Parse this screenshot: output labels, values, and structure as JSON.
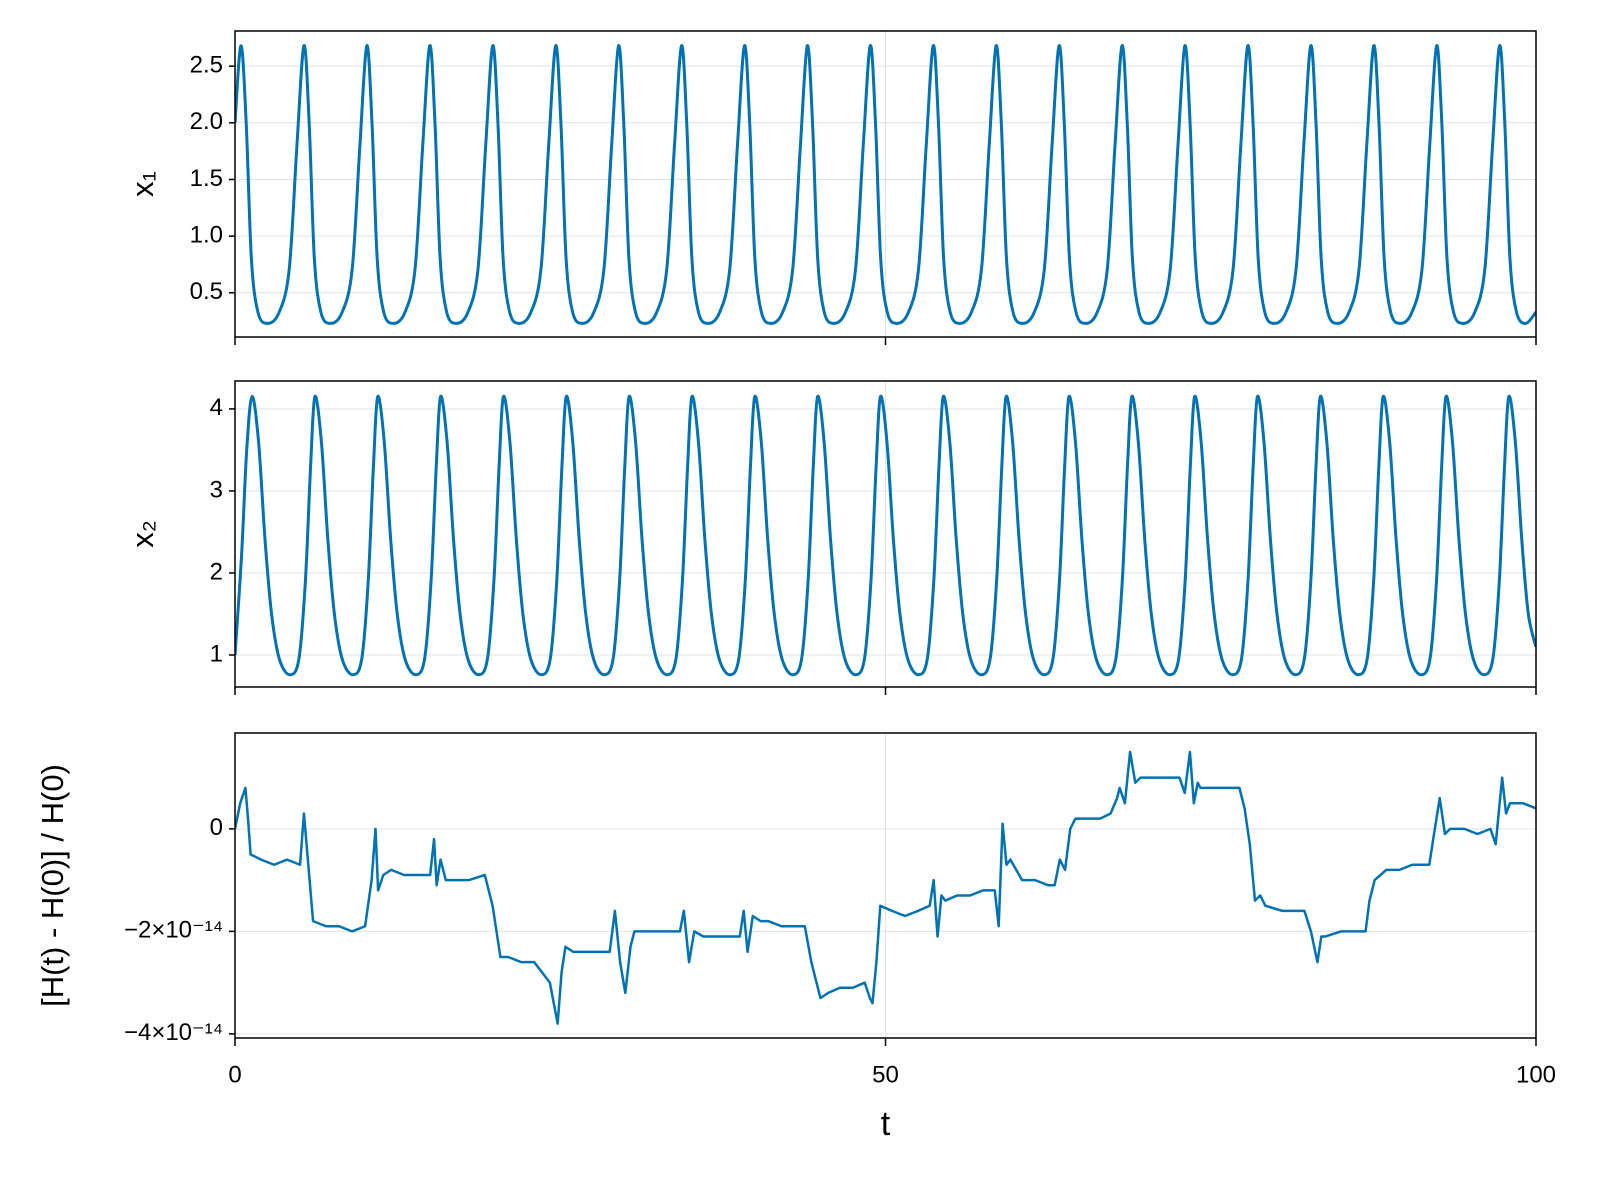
{
  "chart_data": [
    {
      "type": "line",
      "ylabel": "x₁",
      "xlim": [
        0,
        100
      ],
      "xticks": [
        0,
        50,
        100
      ],
      "ylim": [
        0.11,
        2.81
      ],
      "yticks": [
        0.5,
        {
          "value": 1,
          "label": "1.0"
        },
        1.5,
        {
          "value": 2,
          "label": "2.0"
        },
        2.5
      ],
      "grid": true,
      "color": "#0072b2",
      "x": [
        0,
        0.46,
        0.86,
        1.26,
        1.76,
        2.46,
        3.36,
        4.16,
        4.76,
        5.3,
        5.7,
        6.1,
        6.6,
        7.3,
        8.2,
        9.0,
        9.6,
        10.13,
        10.53,
        10.93,
        11.43,
        12.13,
        13.03,
        13.83,
        14.43,
        14.97,
        15.37,
        15.77,
        16.27,
        16.97,
        17.87,
        18.67,
        19.27,
        19.81,
        20.21,
        20.61,
        21.11,
        21.81,
        22.71,
        23.51,
        24.11,
        24.65,
        25.05,
        25.45,
        25.95,
        26.65,
        27.55,
        28.35,
        28.95,
        29.48,
        29.88,
        30.28,
        30.78,
        31.48,
        32.38,
        33.18,
        33.78,
        34.32,
        34.72,
        35.12,
        35.62,
        36.32,
        37.22,
        38.02,
        38.62,
        39.16,
        39.56,
        39.96,
        40.46,
        41.16,
        42.06,
        42.86,
        43.46,
        43.99,
        44.39,
        44.79,
        45.29,
        45.99,
        46.89,
        47.69,
        48.29,
        48.83,
        49.23,
        49.63,
        50.13,
        50.83,
        51.73,
        52.53,
        53.13,
        53.67,
        54.07,
        54.47,
        54.97,
        55.67,
        56.57,
        57.37,
        57.97,
        58.5,
        58.9,
        59.3,
        59.8,
        60.5,
        61.4,
        62.2,
        62.8,
        63.34,
        63.74,
        64.14,
        64.64,
        65.34,
        66.24,
        67.04,
        67.64,
        68.18,
        68.58,
        68.98,
        69.48,
        70.18,
        71.08,
        71.88,
        72.48,
        73.01,
        73.41,
        73.81,
        74.31,
        75.01,
        75.91,
        76.71,
        77.31,
        77.85,
        78.25,
        78.65,
        79.15,
        79.85,
        80.75,
        81.55,
        82.15,
        82.69,
        83.09,
        83.49,
        83.99,
        84.69,
        85.59,
        86.39,
        86.99,
        87.53,
        87.93,
        88.33,
        88.83,
        89.53,
        90.43,
        91.23,
        91.83,
        92.36,
        92.76,
        93.16,
        93.66,
        94.36,
        95.26,
        96.06,
        96.66,
        97.2,
        97.6,
        98.0,
        98.5,
        99.2,
        100
      ],
      "values": [
        2.0,
        2.68,
        2.0,
        0.8,
        0.33,
        0.23,
        0.32,
        0.7,
        1.8,
        2.68,
        2.0,
        0.8,
        0.33,
        0.23,
        0.32,
        0.7,
        1.8,
        2.68,
        2.0,
        0.8,
        0.33,
        0.23,
        0.32,
        0.7,
        1.8,
        2.68,
        2.0,
        0.8,
        0.33,
        0.23,
        0.32,
        0.7,
        1.8,
        2.68,
        2.0,
        0.8,
        0.33,
        0.23,
        0.32,
        0.7,
        1.8,
        2.68,
        2.0,
        0.8,
        0.33,
        0.23,
        0.32,
        0.7,
        1.8,
        2.68,
        2.0,
        0.8,
        0.33,
        0.23,
        0.32,
        0.7,
        1.8,
        2.68,
        2.0,
        0.8,
        0.33,
        0.23,
        0.32,
        0.7,
        1.8,
        2.68,
        2.0,
        0.8,
        0.33,
        0.23,
        0.32,
        0.7,
        1.8,
        2.68,
        2.0,
        0.8,
        0.33,
        0.23,
        0.32,
        0.7,
        1.8,
        2.68,
        2.0,
        0.8,
        0.33,
        0.23,
        0.32,
        0.7,
        1.8,
        2.68,
        2.0,
        0.8,
        0.33,
        0.23,
        0.32,
        0.7,
        1.8,
        2.68,
        2.0,
        0.8,
        0.33,
        0.23,
        0.32,
        0.7,
        1.8,
        2.68,
        2.0,
        0.8,
        0.33,
        0.23,
        0.32,
        0.7,
        1.8,
        2.68,
        2.0,
        0.8,
        0.33,
        0.23,
        0.32,
        0.7,
        1.8,
        2.68,
        2.0,
        0.8,
        0.33,
        0.23,
        0.32,
        0.7,
        1.8,
        2.68,
        2.0,
        0.8,
        0.33,
        0.23,
        0.32,
        0.7,
        1.8,
        2.68,
        2.0,
        0.8,
        0.33,
        0.23,
        0.32,
        0.7,
        1.8,
        2.68,
        2.0,
        0.8,
        0.33,
        0.23,
        0.32,
        0.7,
        1.8,
        2.68,
        2.0,
        0.8,
        0.33,
        0.23,
        0.32,
        0.7,
        1.8,
        2.68,
        2.0,
        0.8,
        0.33,
        0.23,
        0.33
      ]
    },
    {
      "type": "line",
      "ylabel": "x₂",
      "xlim": [
        0,
        100
      ],
      "xticks": [
        0,
        50,
        100
      ],
      "ylim": [
        0.61,
        4.34
      ],
      "yticks": [
        1,
        2,
        3,
        4
      ],
      "grid": true,
      "color": "#0072b2",
      "x": [
        0,
        0.5,
        0.9,
        1.31,
        1.81,
        2.31,
        2.81,
        3.41,
        4.21,
        4.91,
        5.41,
        5.81,
        6.14,
        6.64,
        7.14,
        7.64,
        8.24,
        9.04,
        9.74,
        10.24,
        10.64,
        10.97,
        11.47,
        11.97,
        12.47,
        13.07,
        13.87,
        14.57,
        15.07,
        15.47,
        15.8,
        16.3,
        16.8,
        17.3,
        17.9,
        18.7,
        19.4,
        19.9,
        20.3,
        20.63,
        21.13,
        21.63,
        22.13,
        22.73,
        23.53,
        24.23,
        24.73,
        25.13,
        25.46,
        25.96,
        26.46,
        26.96,
        27.56,
        28.36,
        29.06,
        29.56,
        29.96,
        30.29,
        30.79,
        31.29,
        31.79,
        32.39,
        33.19,
        33.89,
        34.39,
        34.79,
        35.12,
        35.62,
        36.12,
        36.62,
        37.22,
        38.02,
        38.72,
        39.22,
        39.62,
        39.95,
        40.45,
        40.95,
        41.45,
        42.05,
        42.85,
        43.55,
        44.05,
        44.45,
        44.78,
        45.28,
        45.78,
        46.28,
        46.88,
        47.68,
        48.38,
        48.88,
        49.28,
        49.61,
        50.11,
        50.61,
        51.11,
        51.71,
        52.51,
        53.21,
        53.71,
        54.11,
        54.44,
        54.94,
        55.44,
        55.94,
        56.54,
        57.34,
        58.04,
        58.54,
        58.94,
        59.27,
        59.77,
        60.27,
        60.77,
        61.37,
        62.17,
        62.87,
        63.37,
        63.77,
        64.1,
        64.6,
        65.1,
        65.6,
        66.2,
        67.0,
        67.7,
        68.2,
        68.6,
        68.93,
        69.43,
        69.93,
        70.43,
        71.03,
        71.83,
        72.53,
        73.03,
        73.43,
        73.76,
        74.26,
        74.76,
        75.26,
        75.86,
        76.66,
        77.36,
        77.86,
        78.26,
        78.59,
        79.09,
        79.59,
        80.09,
        80.69,
        81.49,
        82.19,
        82.69,
        83.09,
        83.42,
        83.92,
        84.42,
        84.92,
        85.52,
        86.32,
        87.02,
        87.52,
        87.92,
        88.25,
        88.75,
        89.25,
        89.75,
        90.35,
        91.15,
        91.85,
        92.35,
        92.75,
        93.08,
        93.58,
        94.08,
        94.58,
        95.18,
        95.98,
        96.68,
        97.18,
        97.58,
        97.91,
        98.41,
        98.91,
        99.41,
        100
      ],
      "values": [
        1.0,
        2.2,
        3.5,
        4.15,
        3.6,
        2.4,
        1.5,
        0.95,
        0.76,
        0.95,
        1.9,
        3.3,
        4.15,
        3.6,
        2.4,
        1.5,
        0.95,
        0.76,
        0.95,
        1.9,
        3.3,
        4.15,
        3.6,
        2.4,
        1.5,
        0.95,
        0.76,
        0.95,
        1.9,
        3.3,
        4.15,
        3.6,
        2.4,
        1.5,
        0.95,
        0.76,
        0.95,
        1.9,
        3.3,
        4.15,
        3.6,
        2.4,
        1.5,
        0.95,
        0.76,
        0.95,
        1.9,
        3.3,
        4.15,
        3.6,
        2.4,
        1.5,
        0.95,
        0.76,
        0.95,
        1.9,
        3.3,
        4.15,
        3.6,
        2.4,
        1.5,
        0.95,
        0.76,
        0.95,
        1.9,
        3.3,
        4.15,
        3.6,
        2.4,
        1.5,
        0.95,
        0.76,
        0.95,
        1.9,
        3.3,
        4.15,
        3.6,
        2.4,
        1.5,
        0.95,
        0.76,
        0.95,
        1.9,
        3.3,
        4.15,
        3.6,
        2.4,
        1.5,
        0.95,
        0.76,
        0.95,
        1.9,
        3.3,
        4.15,
        3.6,
        2.4,
        1.5,
        0.95,
        0.76,
        0.95,
        1.9,
        3.3,
        4.15,
        3.6,
        2.4,
        1.5,
        0.95,
        0.76,
        0.95,
        1.9,
        3.3,
        4.15,
        3.6,
        2.4,
        1.5,
        0.95,
        0.76,
        0.95,
        1.9,
        3.3,
        4.15,
        3.6,
        2.4,
        1.5,
        0.95,
        0.76,
        0.95,
        1.9,
        3.3,
        4.15,
        3.6,
        2.4,
        1.5,
        0.95,
        0.76,
        0.95,
        1.9,
        3.3,
        4.15,
        3.6,
        2.4,
        1.5,
        0.95,
        0.76,
        0.95,
        1.9,
        3.3,
        4.15,
        3.6,
        2.4,
        1.5,
        0.95,
        0.76,
        0.95,
        1.9,
        3.3,
        4.15,
        3.6,
        2.4,
        1.5,
        0.95,
        0.76,
        0.95,
        1.9,
        3.3,
        4.15,
        3.6,
        2.4,
        1.5,
        0.95,
        0.76,
        0.95,
        1.9,
        3.3,
        4.15,
        3.6,
        2.4,
        1.5,
        0.95,
        0.76,
        0.95,
        1.9,
        3.3,
        4.15,
        3.6,
        2.4,
        1.5,
        1.1
      ]
    },
    {
      "type": "line",
      "ylabel": "[H(t) - H(0)] / H(0)",
      "xlabel": "t",
      "xlim": [
        0,
        100
      ],
      "xticks": [
        0,
        50,
        100
      ],
      "ylim": [
        -4.08e-14,
        1.87e-14
      ],
      "yticks": [
        {
          "value": -4e-14,
          "label": "−4×10⁻¹⁴"
        },
        {
          "value": -2e-14,
          "label": "−2×10⁻¹⁴"
        },
        0
      ],
      "grid": true,
      "color": "#0072b2",
      "x": [
        0,
        0.4,
        0.8,
        1.0,
        1.2,
        2,
        3,
        4,
        5,
        5.3,
        5.6,
        6.0,
        7,
        8,
        9,
        10,
        10.5,
        10.8,
        11.0,
        11.4,
        12,
        13,
        14,
        15,
        15.3,
        15.5,
        15.8,
        16.2,
        17,
        18,
        19.2,
        19.8,
        20.4,
        21,
        22,
        23,
        23.6,
        24.2,
        24.8,
        25.1,
        25.4,
        26,
        27,
        28,
        28.8,
        29.2,
        29.6,
        30.0,
        30.4,
        30.7,
        32,
        33,
        34.2,
        34.5,
        34.9,
        35.3,
        36,
        37,
        38,
        38.8,
        39.1,
        39.4,
        39.8,
        40.4,
        41,
        42,
        43.8,
        44.3,
        45.0,
        45.6,
        46.5,
        47.5,
        48.4,
        48.8,
        49.0,
        49.3,
        49.6,
        50.5,
        51.5,
        52.5,
        53.4,
        53.7,
        54.0,
        54.3,
        54.6,
        55.5,
        56.5,
        57.5,
        58.4,
        58.7,
        59.0,
        59.3,
        59.6,
        60.5,
        61.5,
        62.5,
        63.0,
        63.4,
        63.8,
        64.2,
        64.6,
        65.5,
        66.5,
        67.3,
        67.8,
        68.0,
        68.4,
        68.8,
        69.2,
        69.6,
        70.5,
        71.5,
        72.6,
        73.0,
        73.4,
        73.7,
        74.0,
        74.2,
        75.5,
        76.5,
        77.2,
        77.6,
        78.0,
        78.4,
        78.8,
        79.2,
        80.5,
        81.5,
        82.2,
        82.7,
        83.2,
        83.5,
        83.8,
        85,
        86,
        86.9,
        87.2,
        87.6,
        88.5,
        89.5,
        90.5,
        91.8,
        92.1,
        92.6,
        93.0,
        93.4,
        94.5,
        95.5,
        96.5,
        96.9,
        97.4,
        97.7,
        98.0,
        99,
        100
      ],
      "values": [
        0,
        5e-15,
        8e-15,
        2e-15,
        -5e-15,
        -6e-15,
        -7e-15,
        -6e-15,
        -7e-15,
        3e-15,
        -6e-15,
        -1.8e-14,
        -1.9e-14,
        -1.9e-14,
        -2e-14,
        -1.9e-14,
        -1e-14,
        0,
        -1.2e-14,
        -9e-15,
        -8e-15,
        -9e-15,
        -9e-15,
        -9e-15,
        -2e-15,
        -1.1e-14,
        -6e-15,
        -1e-14,
        -1e-14,
        -1e-14,
        -9e-15,
        -1.5e-14,
        -2.5e-14,
        -2.5e-14,
        -2.6e-14,
        -2.6e-14,
        -2.8e-14,
        -3e-14,
        -3.8e-14,
        -2.8e-14,
        -2.3e-14,
        -2.4e-14,
        -2.4e-14,
        -2.4e-14,
        -2.4e-14,
        -1.6e-14,
        -2.6e-14,
        -3.2e-14,
        -2.3e-14,
        -2e-14,
        -2e-14,
        -2e-14,
        -2e-14,
        -1.6e-14,
        -2.6e-14,
        -2e-14,
        -2.1e-14,
        -2.1e-14,
        -2.1e-14,
        -2.1e-14,
        -1.6e-14,
        -2.4e-14,
        -1.7e-14,
        -1.8e-14,
        -1.8e-14,
        -1.9e-14,
        -1.9e-14,
        -2.6e-14,
        -3.3e-14,
        -3.2e-14,
        -3.1e-14,
        -3.1e-14,
        -3e-14,
        -3.3e-14,
        -3.4e-14,
        -2.6e-14,
        -1.5e-14,
        -1.6e-14,
        -1.7e-14,
        -1.6e-14,
        -1.5e-14,
        -1e-14,
        -2.1e-14,
        -1.3e-14,
        -1.4e-14,
        -1.3e-14,
        -1.3e-14,
        -1.2e-14,
        -1.2e-14,
        -1.9e-14,
        1e-15,
        -7e-15,
        -6e-15,
        -1e-14,
        -1e-14,
        -1.1e-14,
        -1.1e-14,
        -6e-15,
        -8e-15,
        0,
        2e-15,
        2e-15,
        2e-15,
        3e-15,
        6e-15,
        8e-15,
        5e-15,
        1.5e-14,
        9e-15,
        1e-14,
        1e-14,
        1e-14,
        1e-14,
        7e-15,
        1.5e-14,
        5e-15,
        9e-15,
        8e-15,
        8e-15,
        8e-15,
        8e-15,
        4e-15,
        -3e-15,
        -1.4e-14,
        -1.3e-14,
        -1.5e-14,
        -1.6e-14,
        -1.6e-14,
        -1.6e-14,
        -2e-14,
        -2.6e-14,
        -2.1e-14,
        -2.1e-14,
        -2e-14,
        -2e-14,
        -2e-14,
        -1.4e-14,
        -1e-14,
        -8e-15,
        -8e-15,
        -7e-15,
        -7e-15,
        -2e-15,
        6e-15,
        -1e-15,
        0,
        0,
        -1e-15,
        0,
        -3e-15,
        1e-14,
        3e-15,
        5e-15,
        5e-15,
        4e-15
      ]
    }
  ]
}
